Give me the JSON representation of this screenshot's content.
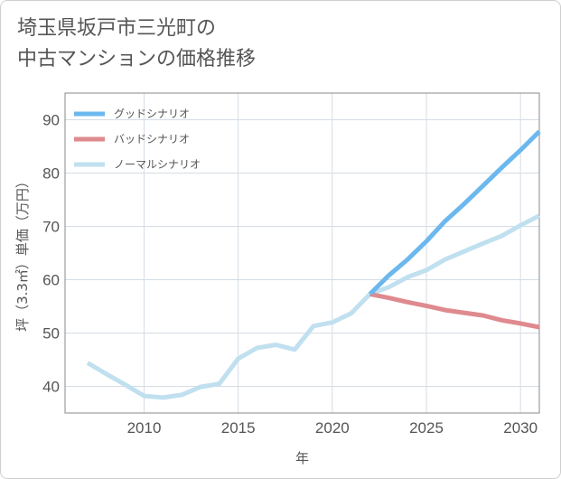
{
  "title": {
    "line1": "埼玉県坂戸市三光町の",
    "line2": "中古マンションの価格推移"
  },
  "chart_data": {
    "type": "line",
    "xlabel": "年",
    "ylabel": "坪（3.3㎡）単価（万円）",
    "xlim": [
      2005.8,
      2031
    ],
    "ylim": [
      35,
      95
    ],
    "xticks": [
      2010,
      2015,
      2020,
      2025,
      2030
    ],
    "yticks": [
      40,
      50,
      60,
      70,
      80,
      90
    ],
    "grid": true,
    "legend_position": "top-left",
    "series": [
      {
        "name": "グッドシナリオ",
        "color": "#6cb8ee",
        "x": [
          2022,
          2023,
          2024,
          2025,
          2026,
          2027,
          2028,
          2029,
          2030,
          2031
        ],
        "y": [
          57.3,
          60.8,
          63.8,
          67.2,
          71.0,
          74.2,
          77.6,
          81.0,
          84.3,
          87.8
        ]
      },
      {
        "name": "バッドシナリオ",
        "color": "#de8a8f",
        "x": [
          2022,
          2023,
          2024,
          2025,
          2026,
          2027,
          2028,
          2029,
          2030,
          2031
        ],
        "y": [
          57.3,
          56.6,
          55.8,
          55.1,
          54.3,
          53.8,
          53.3,
          52.4,
          51.8,
          51.1
        ]
      },
      {
        "name": "ノーマルシナリオ",
        "color": "#c0e0ef",
        "x": [
          2007,
          2008,
          2009,
          2010,
          2011,
          2012,
          2013,
          2014,
          2015,
          2016,
          2017,
          2018,
          2019,
          2020,
          2021,
          2022,
          2023,
          2024,
          2025,
          2026,
          2027,
          2028,
          2029,
          2030,
          2031
        ],
        "y": [
          44.4,
          42.3,
          40.3,
          38.2,
          37.9,
          38.4,
          39.9,
          40.5,
          45.2,
          47.2,
          47.8,
          46.9,
          51.3,
          52.0,
          53.7,
          57.3,
          58.6,
          60.5,
          61.8,
          63.8,
          65.3,
          66.8,
          68.2,
          70.2,
          72.0
        ]
      }
    ]
  }
}
